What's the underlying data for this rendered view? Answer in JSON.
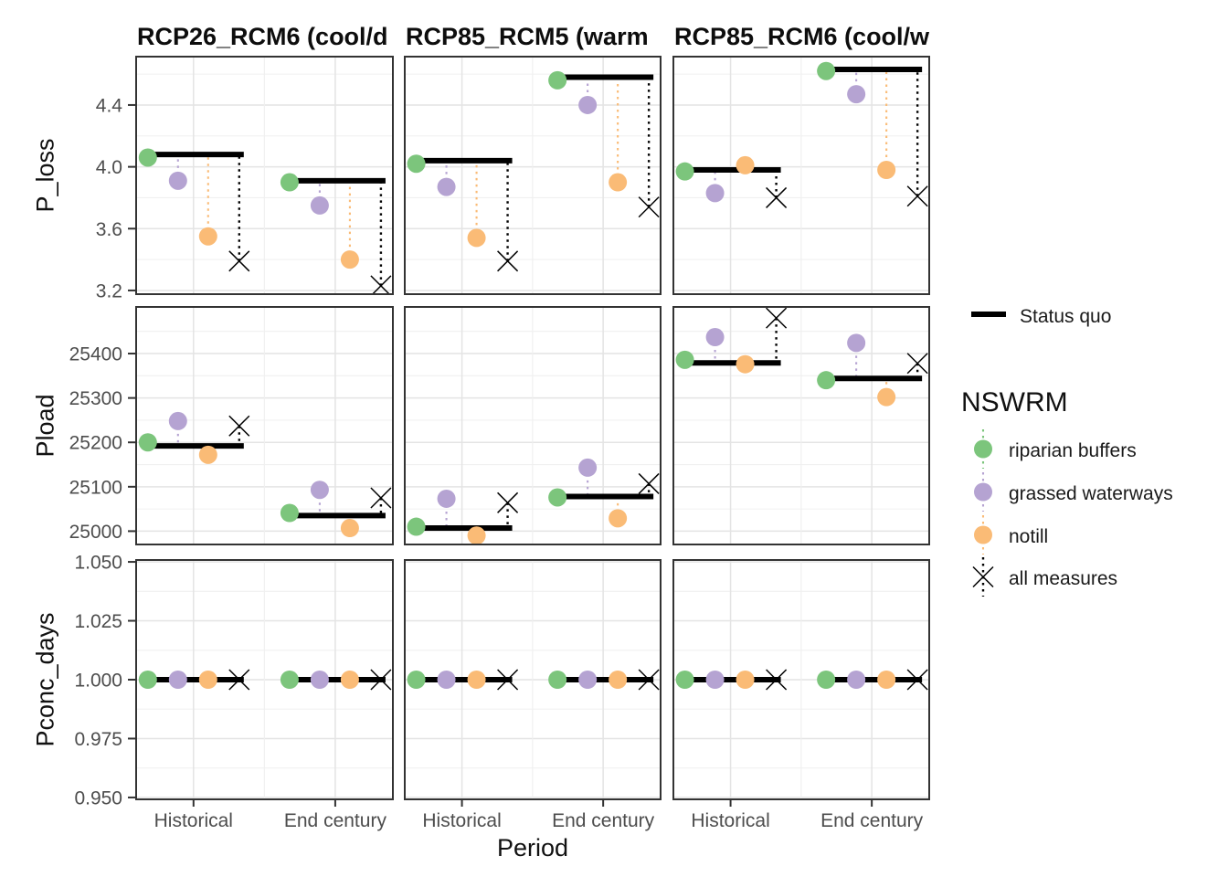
{
  "figure": {
    "legend": {
      "status_quo_label": "Status quo",
      "nswrm_title": "NSWRM",
      "items": [
        {
          "key": "riparian_buffers",
          "label": "riparian buffers",
          "marker": "circle"
        },
        {
          "key": "grassed_waterways",
          "label": "grassed waterways",
          "marker": "circle"
        },
        {
          "key": "notill",
          "label": "notill",
          "marker": "circle"
        },
        {
          "key": "all_measures",
          "label": "all measures",
          "marker": "cross"
        }
      ]
    }
  },
  "chart_data": {
    "type": "scatter",
    "xlabel": "Period",
    "categories": [
      "Historical",
      "End century"
    ],
    "facet_cols": [
      {
        "label": "RCP26_RCM6 (cool/d"
      },
      {
        "label": "RCP85_RCM5 (warm"
      },
      {
        "label": "RCP85_RCM6 (cool/w"
      }
    ],
    "facet_rows": [
      {
        "label": "P_loss",
        "ylim": [
          3.176,
          4.713
        ],
        "yticks": [
          3.2,
          3.6,
          4.0,
          4.4
        ],
        "ytick_labels": [
          "3.2",
          "3.6",
          "4.0",
          "4.4"
        ],
        "yminor": [
          3.4,
          3.8,
          4.2,
          4.6
        ]
      },
      {
        "label": "Pload",
        "ylim": [
          24970,
          25505
        ],
        "yticks": [
          25000,
          25100,
          25200,
          25300,
          25400
        ],
        "ytick_labels": [
          "25000",
          "25100",
          "25200",
          "25300",
          "25400"
        ],
        "yminor": [
          25050,
          25150,
          25250,
          25350,
          25450
        ]
      },
      {
        "label": "Pconc_days",
        "ylim": [
          0.9492,
          1.0508
        ],
        "yticks": [
          0.95,
          0.975,
          1.0,
          1.025,
          1.05
        ],
        "ytick_labels": [
          "0.950",
          "0.975",
          "1.000",
          "1.025",
          "1.050"
        ],
        "yminor": [
          0.9625,
          0.9875,
          1.0125,
          1.0375
        ]
      }
    ],
    "series": [
      "status_quo",
      "riparian_buffers",
      "grassed_waterways",
      "notill",
      "all_measures"
    ],
    "colors": {
      "status_quo": "#000000",
      "riparian_buffers": "#7CC57C",
      "grassed_waterways": "#B5A3D2",
      "notill": "#FABB76",
      "all_measures": "#000000"
    },
    "grid": {
      "major_color": "#E4E4E4",
      "minor_color": "#F0F0F0",
      "border_color": "#333333"
    },
    "values": [
      [
        [
          {
            "category": "Historical",
            "status_quo": 4.08,
            "riparian_buffers": 4.06,
            "grassed_waterways": 3.91,
            "notill": 3.55,
            "all_measures": 3.39
          },
          {
            "category": "End century",
            "status_quo": 3.91,
            "riparian_buffers": 3.9,
            "grassed_waterways": 3.75,
            "notill": 3.4,
            "all_measures": 3.23
          }
        ],
        [
          {
            "category": "Historical",
            "status_quo": 4.04,
            "riparian_buffers": 4.02,
            "grassed_waterways": 3.87,
            "notill": 3.54,
            "all_measures": 3.39
          },
          {
            "category": "End century",
            "status_quo": 4.58,
            "riparian_buffers": 4.56,
            "grassed_waterways": 4.4,
            "notill": 3.9,
            "all_measures": 3.74
          }
        ],
        [
          {
            "category": "Historical",
            "status_quo": 3.98,
            "riparian_buffers": 3.97,
            "grassed_waterways": 3.83,
            "notill": 4.01,
            "all_measures": 3.8
          },
          {
            "category": "End century",
            "status_quo": 4.63,
            "riparian_buffers": 4.62,
            "grassed_waterways": 4.47,
            "notill": 3.98,
            "all_measures": 3.81
          }
        ]
      ],
      [
        [
          {
            "category": "Historical",
            "status_quo": 25192,
            "riparian_buffers": 25200,
            "grassed_waterways": 25248,
            "notill": 25172,
            "all_measures": 25237
          },
          {
            "category": "End century",
            "status_quo": 25035,
            "riparian_buffers": 25041,
            "grassed_waterways": 25093,
            "notill": 25007,
            "all_measures": 25075
          }
        ],
        [
          {
            "category": "Historical",
            "status_quo": 25007,
            "riparian_buffers": 25010,
            "grassed_waterways": 25073,
            "notill": 24990,
            "all_measures": 25064
          },
          {
            "category": "End century",
            "status_quo": 25078,
            "riparian_buffers": 25076,
            "grassed_waterways": 25143,
            "notill": 25029,
            "all_measures": 25107
          }
        ],
        [
          {
            "category": "Historical",
            "status_quo": 25379,
            "riparian_buffers": 25386,
            "grassed_waterways": 25437,
            "notill": 25376,
            "all_measures": 25480
          },
          {
            "category": "End century",
            "status_quo": 25344,
            "riparian_buffers": 25340,
            "grassed_waterways": 25424,
            "notill": 25302,
            "all_measures": 25378
          }
        ]
      ],
      [
        [
          {
            "category": "Historical",
            "status_quo": 1.0,
            "riparian_buffers": 1.0,
            "grassed_waterways": 1.0,
            "notill": 1.0,
            "all_measures": 1.0
          },
          {
            "category": "End century",
            "status_quo": 1.0,
            "riparian_buffers": 1.0,
            "grassed_waterways": 1.0,
            "notill": 1.0,
            "all_measures": 1.0
          }
        ],
        [
          {
            "category": "Historical",
            "status_quo": 1.0,
            "riparian_buffers": 1.0,
            "grassed_waterways": 1.0,
            "notill": 1.0,
            "all_measures": 1.0
          },
          {
            "category": "End century",
            "status_quo": 1.0,
            "riparian_buffers": 1.0,
            "grassed_waterways": 1.0,
            "notill": 1.0,
            "all_measures": 1.0
          }
        ],
        [
          {
            "category": "Historical",
            "status_quo": 1.0,
            "riparian_buffers": 1.0,
            "grassed_waterways": 1.0,
            "notill": 1.0,
            "all_measures": 1.0
          },
          {
            "category": "End century",
            "status_quo": 1.0,
            "riparian_buffers": 1.0,
            "grassed_waterways": 1.0,
            "notill": 1.0,
            "all_measures": 1.0
          }
        ]
      ]
    ]
  }
}
